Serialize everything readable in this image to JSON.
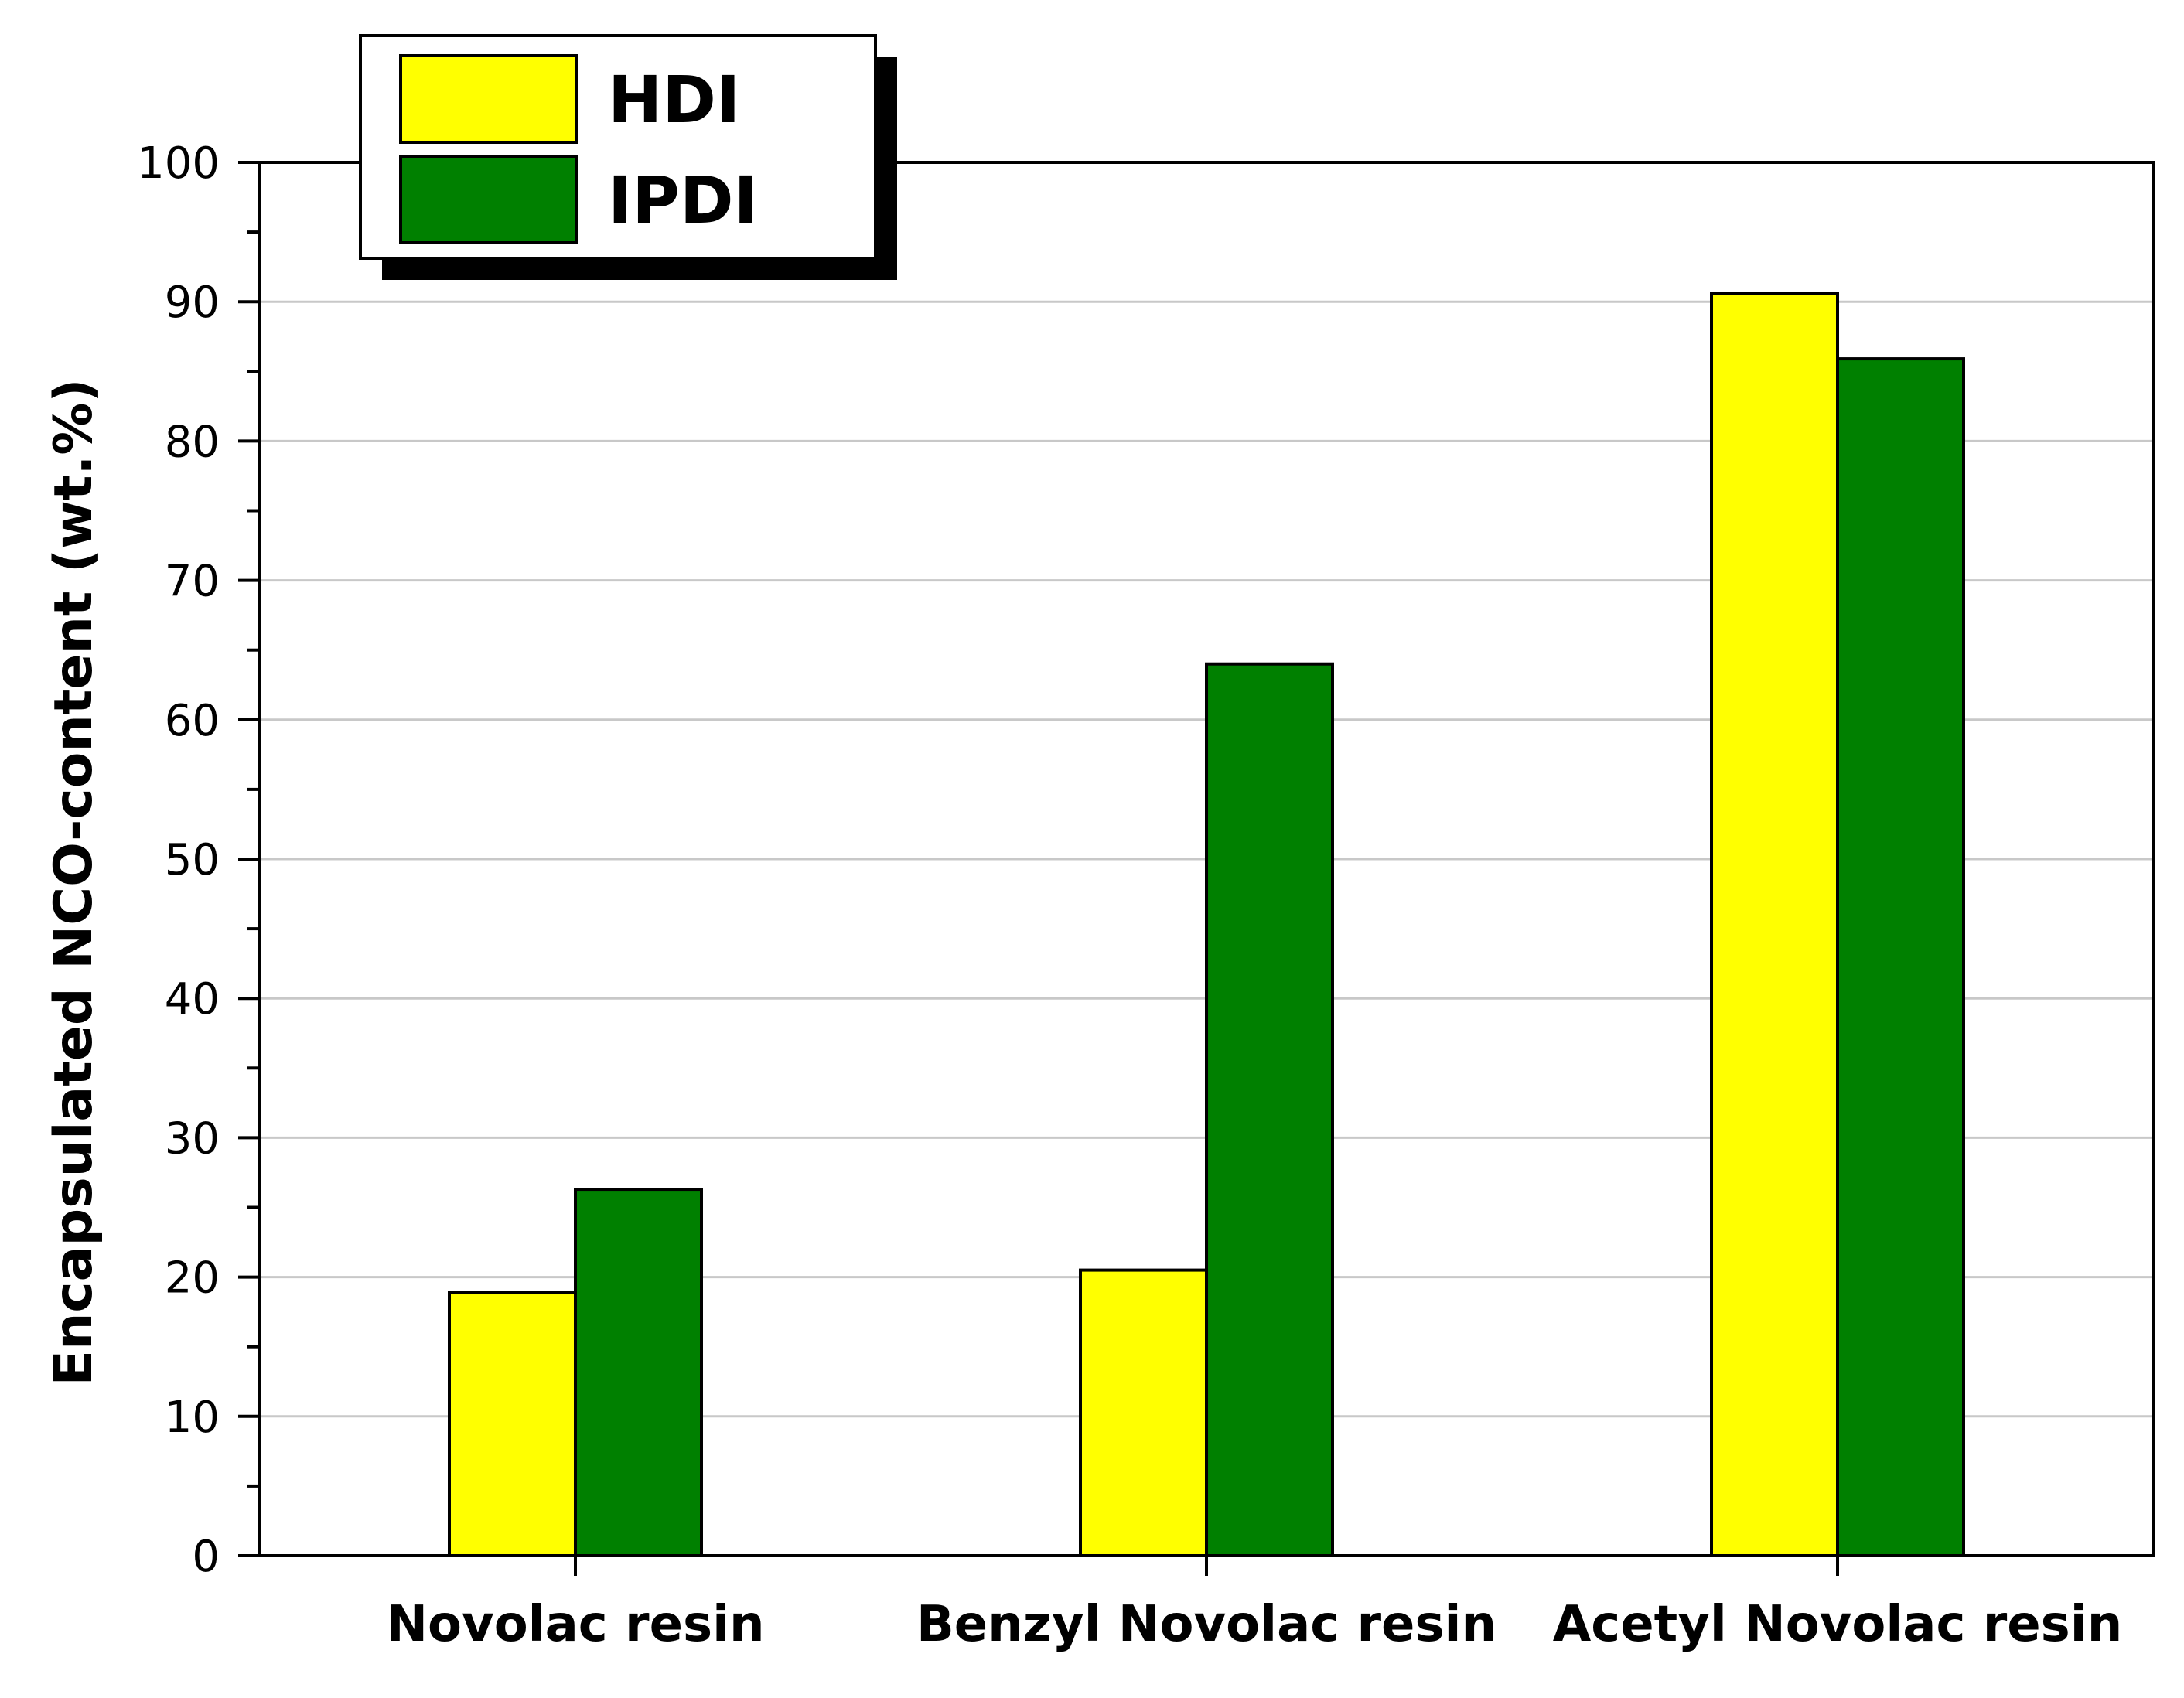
{
  "chart_data": {
    "type": "bar",
    "title": "",
    "xlabel": "",
    "ylabel": "Encapsulated NCO-content (wt.%)",
    "categories": [
      "Novolac resin",
      "Benzyl Novolac resin",
      "Acetyl Novolac resin"
    ],
    "series": [
      {
        "name": "HDI",
        "values": [
          18.9,
          20.5,
          90.6
        ],
        "color": "#ffff00"
      },
      {
        "name": "IPDI",
        "values": [
          26.3,
          64.0,
          85.9
        ],
        "color": "#008000"
      }
    ],
    "ylim": [
      0,
      100
    ],
    "yticks": [
      "0",
      "10",
      "20",
      "30",
      "40",
      "50",
      "60",
      "70",
      "80",
      "90",
      "100"
    ],
    "grid": true,
    "legend_position": "top-left"
  }
}
